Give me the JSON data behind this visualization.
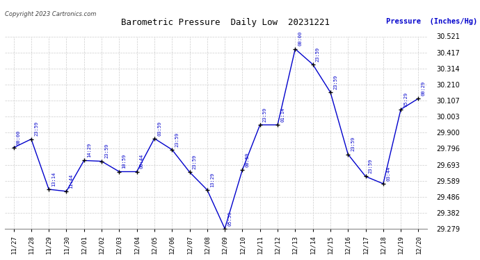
{
  "title": "Barometric Pressure  Daily Low  20231221",
  "ylabel": "Pressure  (Inches/Hg)",
  "copyright": "Copyright 2023 Cartronics.com",
  "line_color": "#0000cc",
  "marker_color": "#000000",
  "background_color": "#ffffff",
  "grid_color": "#cccccc",
  "ylim": [
    29.279,
    30.521
  ],
  "yticks": [
    29.279,
    29.382,
    29.486,
    29.589,
    29.693,
    29.796,
    29.9,
    30.003,
    30.107,
    30.21,
    30.314,
    30.417,
    30.521
  ],
  "data": [
    {
      "date": "11/27",
      "value": 29.803,
      "time": "00:00"
    },
    {
      "date": "11/28",
      "value": 29.858,
      "time": "23:59"
    },
    {
      "date": "11/29",
      "value": 29.534,
      "time": "13:14"
    },
    {
      "date": "11/30",
      "value": 29.521,
      "time": "11:44"
    },
    {
      "date": "12/01",
      "value": 29.72,
      "time": "14:29"
    },
    {
      "date": "12/02",
      "value": 29.715,
      "time": "23:59"
    },
    {
      "date": "12/03",
      "value": 29.648,
      "time": "10:59"
    },
    {
      "date": "12/04",
      "value": 29.648,
      "time": "06:44"
    },
    {
      "date": "12/05",
      "value": 29.862,
      "time": "03:59"
    },
    {
      "date": "12/06",
      "value": 29.79,
      "time": "23:59"
    },
    {
      "date": "12/07",
      "value": 29.645,
      "time": "23:59"
    },
    {
      "date": "12/08",
      "value": 29.53,
      "time": "13:29"
    },
    {
      "date": "12/09",
      "value": 29.28,
      "time": "05:59"
    },
    {
      "date": "12/10",
      "value": 29.66,
      "time": "00:59"
    },
    {
      "date": "12/11",
      "value": 29.95,
      "time": "23:59"
    },
    {
      "date": "12/12",
      "value": 29.95,
      "time": "01:14"
    },
    {
      "date": "12/13",
      "value": 30.44,
      "time": "00:00"
    },
    {
      "date": "12/14",
      "value": 30.34,
      "time": "23:59"
    },
    {
      "date": "12/15",
      "value": 30.16,
      "time": "23:59"
    },
    {
      "date": "12/16",
      "value": 29.76,
      "time": "23:59"
    },
    {
      "date": "12/17",
      "value": 29.617,
      "time": "23:59"
    },
    {
      "date": "12/18",
      "value": 29.57,
      "time": "03:44"
    },
    {
      "date": "12/19",
      "value": 30.05,
      "time": "15:29"
    },
    {
      "date": "12/20",
      "value": 30.12,
      "time": "00:29"
    }
  ]
}
